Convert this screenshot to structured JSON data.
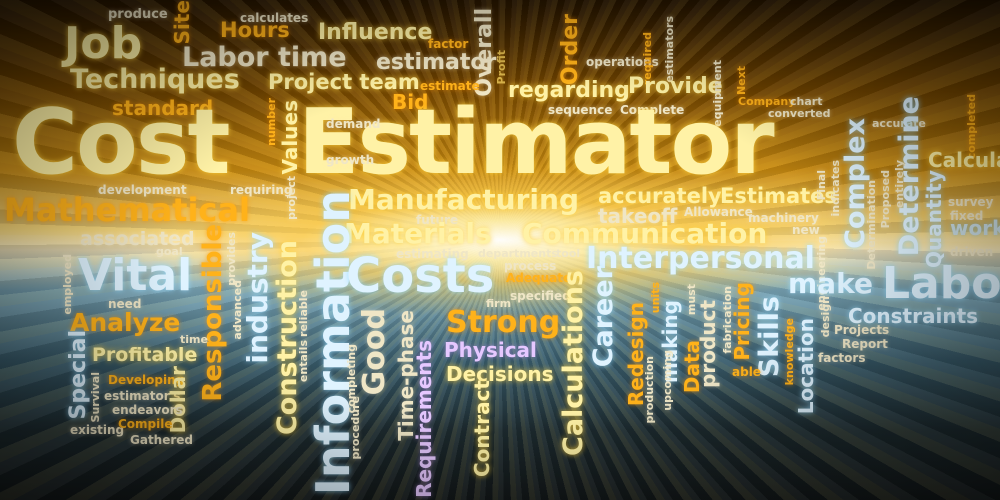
{
  "image": {
    "theme": "Cost Estimator word cloud on a radiating light-burst background",
    "colors": {
      "glow_center": "#f7eac0",
      "gold": "#c88a10",
      "teal": "#3b5f6f",
      "dark": "#151b1c"
    }
  },
  "words": {
    "produce": "produce",
    "site": "Site",
    "hours": "Hours",
    "calculates": "calculates",
    "influence": "Influence",
    "factor": "factor",
    "overall": "Overall",
    "profit": "Profit",
    "order": "Order",
    "operations": "operations",
    "required": "required",
    "estimators": "estimators",
    "next": "Next",
    "job": "Job",
    "labor_time": "Labor time",
    "estimator": "estimator",
    "techniques": "Techniques",
    "project_team": "Project team",
    "estimate": "estimate",
    "regarding": "regarding",
    "provide": "Provide",
    "equipment": "equipment",
    "company": "Company",
    "chart": "chart",
    "standard": "standard",
    "number": "number",
    "values": "Values",
    "bid": "Bid",
    "sequence": "sequence",
    "complete": "Complete",
    "converted": "converted",
    "completed": "completed",
    "cost": "Cost",
    "estimator_big": "Estimator",
    "demand": "demand",
    "growth": "growth",
    "complex": "Complex",
    "accurate": "accurate",
    "determine": "Determine",
    "calculations": "Calculations",
    "development": "development",
    "requiring": "requiring",
    "project": "project",
    "manufacturing": "Manufacturing",
    "accurately": "accurately",
    "estimates": "Estimates",
    "final": "Final",
    "indicates": "indicates",
    "determination": "Determination",
    "proposed": "Proposed",
    "entirely": "entirely",
    "quantity": "Quantity",
    "survey": "survey",
    "fixed": "fixed",
    "mathematical": "Mathematical",
    "future": "future",
    "takeoff": "takeoff",
    "allowance": "Allowance",
    "machinery": "machinery",
    "work": "work",
    "associated": "associated",
    "materials": "Materials",
    "communication": "Communication",
    "new": "new",
    "goal": "goal",
    "provides": "provides",
    "industry": "industry",
    "information": "Information",
    "estimating": "estimating",
    "departments": "departments",
    "tool": "tool",
    "interpersonal": "Interpersonal",
    "engineering": "engineering",
    "driven": "driven",
    "employed": "employed",
    "vital": "Vital",
    "responsible": "Responsible",
    "advanced": "advanced",
    "construction": "Construction",
    "costs": "Costs",
    "process": "process",
    "adequate": "Adequate",
    "make": "make",
    "labor": "Labo",
    "need": "need",
    "reliable": "reliable",
    "specified": "specified",
    "units": "units",
    "must": "must",
    "fabrication": "fabrication",
    "design": "design",
    "analyze": "Analyze",
    "firm": "firm",
    "constraints": "Constraints",
    "strong": "Strong",
    "time": "time",
    "good": "Good",
    "time_phase": "Time-phase",
    "career": "Career",
    "redesign": "Redesign",
    "making": "making",
    "product": "product",
    "pricing": "Pricing",
    "skills": "Skills",
    "projects": "Projects",
    "special": "Special",
    "profitable": "Profitable",
    "entails": "entails",
    "procedure": "procedure",
    "completing": "completing",
    "physical": "Physical",
    "location": "Location",
    "report": "Report",
    "knowledge": "knowledge",
    "factors": "factors",
    "data": "Data",
    "production": "production",
    "upcoming": "upcoming",
    "able": "able",
    "developing": "Developing",
    "survival": "Survival",
    "estimators_p": "estimator's",
    "dollar": "Dollar",
    "decisions": "Decisions",
    "requirements": "Requirements",
    "endeavors": "endeavors",
    "existing": "existing",
    "compile": "Compile",
    "gathered": "Gathered",
    "contract": "Contract"
  }
}
